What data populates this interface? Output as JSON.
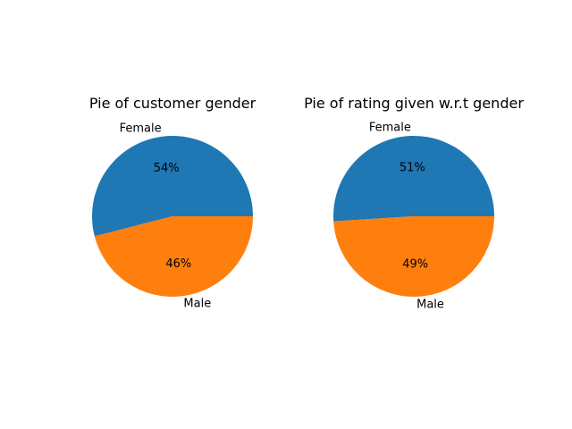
{
  "chart_data": [
    {
      "type": "pie",
      "title": "Pie of customer gender",
      "labels": [
        "Female",
        "Male"
      ],
      "values": [
        54,
        46
      ],
      "percent_labels": [
        "54%",
        "46%"
      ],
      "colors": [
        "#1f77b4",
        "#ff7f0e"
      ],
      "start_angle_deg": 0,
      "direction": "counterclockwise"
    },
    {
      "type": "pie",
      "title": "Pie of rating given w.r.t gender",
      "labels": [
        "Female",
        "Male"
      ],
      "values": [
        51,
        49
      ],
      "percent_labels": [
        "51%",
        "49%"
      ],
      "colors": [
        "#1f77b4",
        "#ff7f0e"
      ],
      "start_angle_deg": 0,
      "direction": "counterclockwise"
    }
  ]
}
